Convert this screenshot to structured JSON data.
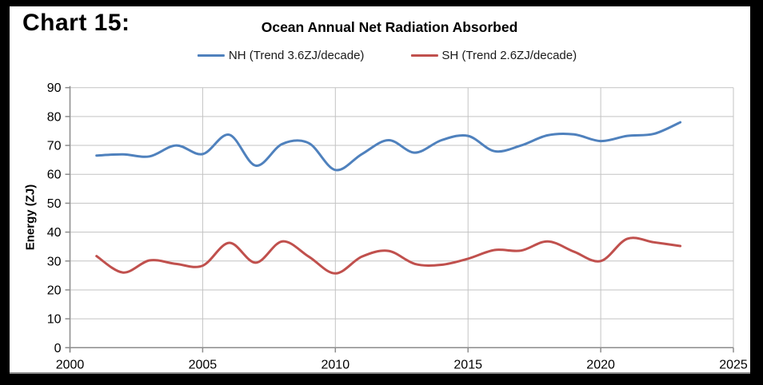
{
  "header": {
    "chart_label": "Chart 15:"
  },
  "chart_data": {
    "type": "line",
    "title": "Ocean Annual Net Radiation Absorbed",
    "ylabel": "Energy (ZJ)",
    "xlabel": "",
    "xlim": [
      2000,
      2025
    ],
    "ylim": [
      0,
      90
    ],
    "x_ticks": [
      2000,
      2005,
      2010,
      2015,
      2020,
      2025
    ],
    "y_ticks": [
      0,
      10,
      20,
      30,
      40,
      50,
      60,
      70,
      80,
      90
    ],
    "grid": true,
    "legend_position": "top",
    "line_style": "smooth",
    "x": [
      2001,
      2002,
      2003,
      2004,
      2005,
      2006,
      2007,
      2008,
      2009,
      2010,
      2011,
      2012,
      2013,
      2014,
      2015,
      2016,
      2017,
      2018,
      2019,
      2020,
      2021,
      2022,
      2023
    ],
    "series": [
      {
        "name": "NH (Trend 3.6ZJ/decade)",
        "color": "#4F81BD",
        "values": [
          66.5,
          66.9,
          66.2,
          70.0,
          67.0,
          73.7,
          63.0,
          70.5,
          70.8,
          61.5,
          67.0,
          71.8,
          67.5,
          71.8,
          73.3,
          68.0,
          70.0,
          73.5,
          73.8,
          71.5,
          73.3,
          74.0,
          78.0
        ]
      },
      {
        "name": "SH (Trend 2.6ZJ/decade)",
        "color": "#C0504D",
        "values": [
          31.7,
          26.0,
          30.2,
          29.0,
          28.4,
          36.3,
          29.4,
          36.8,
          31.5,
          25.7,
          31.5,
          33.5,
          29.0,
          28.7,
          30.8,
          33.8,
          33.6,
          36.8,
          33.2,
          30.0,
          37.7,
          36.5,
          35.2
        ]
      }
    ]
  },
  "colors": {
    "frame": "#000000",
    "panel": "#ffffff",
    "gridline": "#c3c3c3",
    "axis": "#8c8c8c",
    "text": "#000000"
  }
}
